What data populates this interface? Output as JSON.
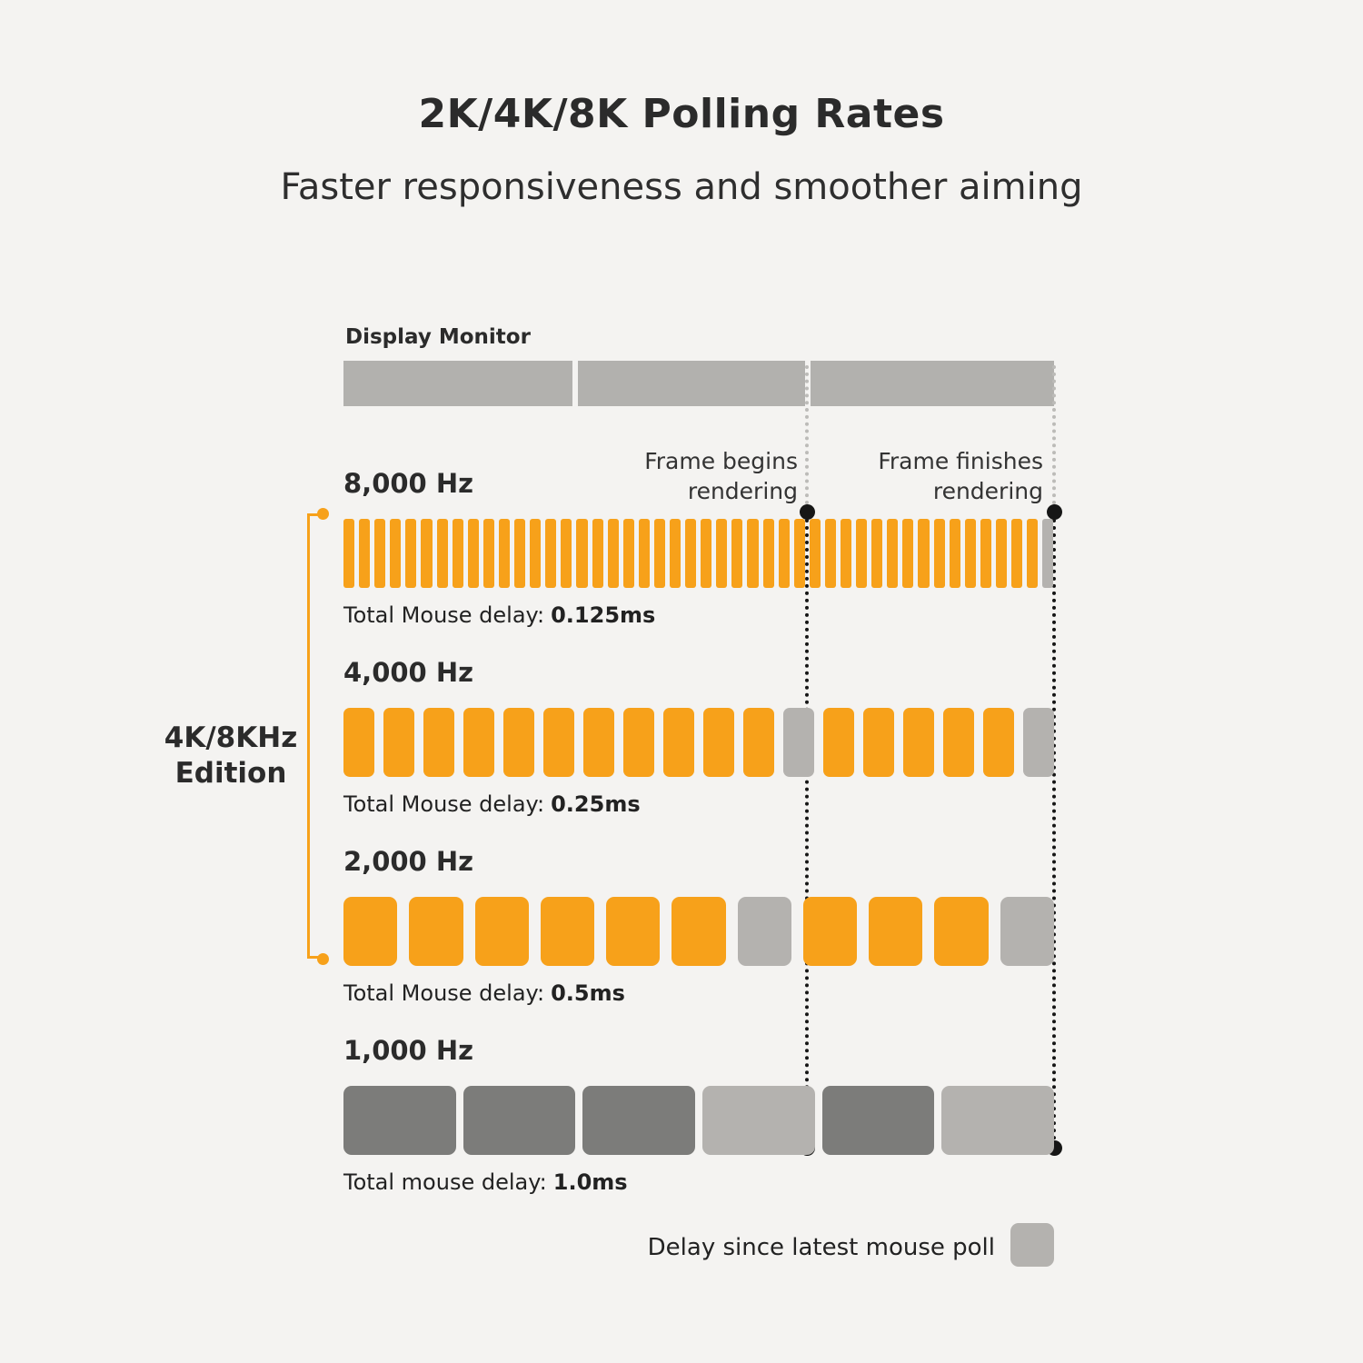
{
  "title": "2K/4K/8K Polling Rates",
  "subtitle": "Faster responsiveness and smoother aiming",
  "monitor": {
    "label": "Display Monitor",
    "segment_widths": [
      252,
      250,
      268
    ]
  },
  "markers": {
    "frame_begins": "Frame begins rendering",
    "frame_finishes": "Frame finishes rendering"
  },
  "edition": {
    "line1": "4K/8KHz",
    "line2": "Edition"
  },
  "legend": {
    "label": "Delay since latest mouse poll"
  },
  "colors": {
    "background": "#f4f3f1",
    "accent_orange": "#f7a11a",
    "delay_gray": "#b4b2af",
    "dark_gray": "#7c7c7a",
    "monitor_gray": "#b2b1ae",
    "text_dark": "#2b2b2b"
  },
  "chart_data": {
    "type": "bar",
    "title": "2K/4K/8K Polling Rates",
    "subtitle": "Faster responsiveness and smoother aiming",
    "x_axis": "time across one display frame, bounded by 'Frame begins rendering' and 'Frame finishes rendering' markers",
    "legend": "Gray bar = delay since latest mouse poll",
    "rows": [
      {
        "label": "8,000 Hz",
        "polling_interval_ms": 0.125,
        "delay_prefix": "Total Mouse delay:",
        "delay_value": "0.125ms",
        "count": 46,
        "gap": 5,
        "radius": 3,
        "color_key": "accent_orange",
        "gray_indices": [
          45
        ]
      },
      {
        "label": "4,000 Hz",
        "polling_interval_ms": 0.25,
        "delay_prefix": "Total Mouse delay:",
        "delay_value": "0.25ms",
        "count": 18,
        "gap": 10,
        "radius": 7,
        "color_key": "accent_orange",
        "gray_indices": [
          11,
          17
        ]
      },
      {
        "label": "2,000 Hz",
        "polling_interval_ms": 0.5,
        "delay_prefix": "Total Mouse delay:",
        "delay_value": "0.5ms",
        "count": 11,
        "gap": 13,
        "radius": 9,
        "color_key": "accent_orange",
        "gray_indices": [
          6,
          10
        ]
      },
      {
        "label": "1,000 Hz",
        "polling_interval_ms": 1.0,
        "delay_prefix": "Total mouse delay:",
        "delay_value": "1.0ms",
        "count": 6,
        "gap": 8,
        "radius": 9,
        "color_key": "dark_gray",
        "gray_indices": [
          3,
          5
        ]
      }
    ]
  }
}
